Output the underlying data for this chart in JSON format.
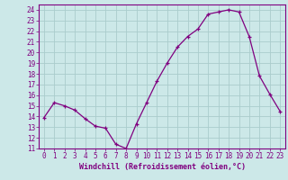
{
  "x": [
    0,
    1,
    2,
    3,
    4,
    5,
    6,
    7,
    8,
    9,
    10,
    11,
    12,
    13,
    14,
    15,
    16,
    17,
    18,
    19,
    20,
    21,
    22,
    23
  ],
  "y": [
    13.9,
    15.3,
    15.0,
    14.6,
    13.8,
    13.1,
    12.9,
    11.4,
    11.0,
    13.3,
    15.3,
    17.3,
    19.0,
    20.5,
    21.5,
    22.2,
    23.6,
    23.8,
    24.0,
    23.8,
    21.5,
    17.8,
    16.1,
    14.5
  ],
  "line_color": "#800080",
  "marker": "+",
  "bg_color": "#cce8e8",
  "grid_color": "#aacccc",
  "xlabel": "Windchill (Refroidissement éolien,°C)",
  "xlabel_color": "#800080",
  "tick_color": "#800080",
  "ylim": [
    11,
    24.5
  ],
  "yticks": [
    11,
    12,
    13,
    14,
    15,
    16,
    17,
    18,
    19,
    20,
    21,
    22,
    23,
    24
  ],
  "spine_color": "#800080",
  "tick_fontsize": 5.5,
  "xlabel_fontsize": 6.0
}
